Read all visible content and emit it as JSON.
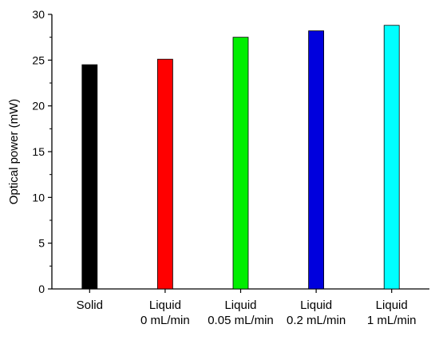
{
  "chart_data": {
    "type": "bar",
    "title": "",
    "xlabel": "",
    "ylabel": "Optical power (mW)",
    "ylim": [
      0,
      30
    ],
    "yticks": [
      0,
      5,
      10,
      15,
      20,
      25,
      30
    ],
    "grid": false,
    "legend": "none",
    "categories": [
      [
        "Solid"
      ],
      [
        "Liquid",
        "0 mL/min"
      ],
      [
        "Liquid",
        "0.05 mL/min"
      ],
      [
        "Liquid",
        "0.2 mL/min"
      ],
      [
        "Liquid",
        "1 mL/min"
      ]
    ],
    "values": [
      24.5,
      25.1,
      27.5,
      28.2,
      28.8
    ],
    "colors": [
      "#000000",
      "#ff0000",
      "#00ee00",
      "#0000dd",
      "#00ffff"
    ]
  }
}
